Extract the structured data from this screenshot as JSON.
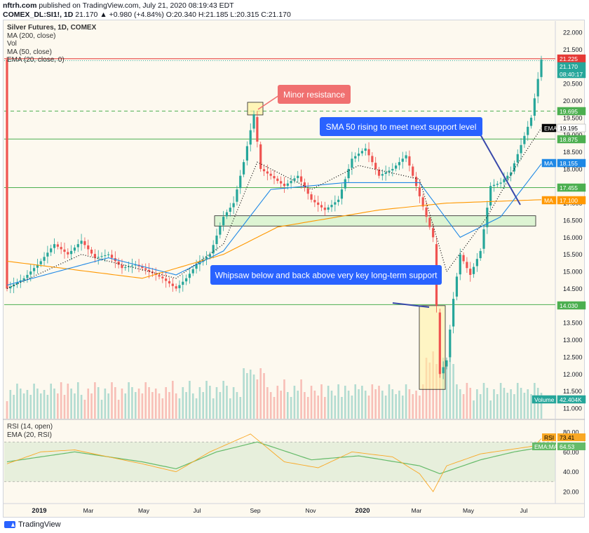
{
  "header": {
    "publisher": "nftrh.com",
    "published_text": "published on TradingView.com, July 21, 2020 08:19:43 EDT",
    "symbol": "COMEX_DL:SI1!, 1D",
    "ohlc": "21.170 ▲ +0.980 (+4.84%) O:20.340 H:21.185 L:20.315 C:21.170"
  },
  "legend": {
    "title": "Silver Futures, 1D, COMEX",
    "lines": [
      "MA (200, close)",
      "Vol",
      "MA (50, close)",
      "EMA (20, close, 0)"
    ]
  },
  "rsi_legend": {
    "line1": "RSI (14, open)",
    "line2": "EMA (20, RSI)"
  },
  "price_axis": {
    "ticks": [
      "22.000",
      "21.500",
      "21.000",
      "20.500",
      "20.000",
      "19.500",
      "19.000",
      "18.500",
      "18.000",
      "17.500",
      "17.000",
      "16.500",
      "16.000",
      "15.500",
      "15.000",
      "14.500",
      "14.000",
      "13.500",
      "13.000",
      "12.500",
      "12.000",
      "11.500",
      "11.000"
    ],
    "tick_values": [
      22.0,
      21.5,
      21.0,
      20.5,
      20.0,
      19.5,
      19.0,
      18.5,
      18.0,
      17.5,
      17.0,
      16.5,
      16.0,
      15.5,
      15.0,
      14.5,
      14.0,
      13.5,
      13.0,
      12.5,
      12.0,
      11.5,
      11.0
    ]
  },
  "rsi_axis": {
    "ticks": [
      "80.00",
      "60.00",
      "40.00",
      "20.00"
    ],
    "tick_values": [
      80,
      60,
      40,
      20
    ]
  },
  "time_axis": {
    "labels": [
      "2019",
      "Mar",
      "May",
      "Jul",
      "Sep",
      "Nov",
      "2020",
      "Mar",
      "May",
      "Jul"
    ]
  },
  "price_tags": [
    {
      "label": "21.225",
      "value": 21.225,
      "bg": "#e53935",
      "fg": "#ffffff"
    },
    {
      "label": "21.170",
      "value": 21.17,
      "bg": "#26a69a",
      "fg": "#ffffff"
    },
    {
      "label": "08:40:17",
      "value": 20.92,
      "bg": "#26a69a",
      "fg": "#ffffff"
    },
    {
      "label": "19.695",
      "value": 19.695,
      "bg": "#4caf50",
      "fg": "#ffffff"
    },
    {
      "label": "EMA",
      "value": 19.195,
      "bg": "#000000",
      "fg": "#ffffff"
    },
    {
      "label": "19.195",
      "value": 19.195,
      "bg": "#ffffff",
      "fg": "#000000"
    },
    {
      "label": "18.875",
      "value": 18.875,
      "bg": "#4caf50",
      "fg": "#ffffff"
    },
    {
      "label": "MA",
      "value": 18.155,
      "bg": "#1e88e5",
      "fg": "#ffffff"
    },
    {
      "label": "18.155",
      "value": 18.155,
      "bg": "#1e88e5",
      "fg": "#ffffff"
    },
    {
      "label": "17.455",
      "value": 17.455,
      "bg": "#4caf50",
      "fg": "#ffffff"
    },
    {
      "label": "MA",
      "value": 17.1,
      "bg": "#ff9800",
      "fg": "#ffffff"
    },
    {
      "label": "17.100",
      "value": 17.1,
      "bg": "#ff9800",
      "fg": "#ffffff"
    },
    {
      "label": "14.030",
      "value": 14.03,
      "bg": "#4caf50",
      "fg": "#ffffff"
    },
    {
      "label": "Volume",
      "value": 11.3,
      "bg": "#26a69a",
      "fg": "#ffffff"
    },
    {
      "label": "42.404K",
      "value": 11.3,
      "bg": "#26a69a",
      "fg": "#ffffff"
    }
  ],
  "rsi_tags": [
    {
      "label": "RSI",
      "value": 73.41,
      "bg": "#f9a825",
      "fg": "#000000"
    },
    {
      "label": "73.41",
      "value": 73.41,
      "bg": "#f9a825",
      "fg": "#000000"
    },
    {
      "label": "EMA:MA",
      "value": 64.53,
      "bg": "#66bb6a",
      "fg": "#ffffff"
    },
    {
      "label": "64.53",
      "value": 64.53,
      "bg": "#66bb6a",
      "fg": "#ffffff"
    }
  ],
  "annotations": {
    "minor_resistance": "Minor resistance",
    "sma50": "SMA 50 rising to meet next support level",
    "whipsaw": "Whipsaw below and back above very key long-term support"
  },
  "levels": [
    21.225,
    19.695,
    18.875,
    17.455,
    14.03
  ],
  "colors": {
    "up": "#26a69a",
    "down": "#ef5350",
    "ma200": "#ff9800",
    "ma50": "#1e88e5",
    "ema20": "#000000",
    "support": "#4caf50",
    "rsi": "#f9a825",
    "rsi_ema": "#66bb6a",
    "callout_blue": "#2962ff",
    "callout_red": "#f07070"
  },
  "footer": {
    "brand": "TradingView"
  },
  "chart_data": {
    "type": "candlestick",
    "title": "Silver Futures, 1D, COMEX",
    "x_labels": [
      "2019",
      "Mar",
      "May",
      "Jul",
      "Sep",
      "Nov",
      "2020",
      "Mar",
      "May",
      "Jul"
    ],
    "close_path": [
      [
        0,
        14.5
      ],
      [
        5,
        14.8
      ],
      [
        10,
        15.3
      ],
      [
        14,
        15.8
      ],
      [
        18,
        15.5
      ],
      [
        22,
        15.9
      ],
      [
        26,
        15.4
      ],
      [
        30,
        15.5
      ],
      [
        34,
        15.1
      ],
      [
        38,
        15.2
      ],
      [
        42,
        15.0
      ],
      [
        46,
        14.8
      ],
      [
        50,
        14.5
      ],
      [
        53,
        14.8
      ],
      [
        56,
        15.2
      ],
      [
        60,
        15.5
      ],
      [
        64,
        16.6
      ],
      [
        67,
        17.0
      ],
      [
        70,
        18.2
      ],
      [
        73,
        19.6
      ],
      [
        75,
        18.0
      ],
      [
        78,
        17.8
      ],
      [
        82,
        17.5
      ],
      [
        86,
        17.8
      ],
      [
        90,
        17.1
      ],
      [
        94,
        16.8
      ],
      [
        98,
        17.1
      ],
      [
        102,
        18.3
      ],
      [
        106,
        18.6
      ],
      [
        110,
        17.8
      ],
      [
        114,
        18.0
      ],
      [
        118,
        18.4
      ],
      [
        122,
        17.2
      ],
      [
        124,
        16.6
      ],
      [
        126,
        16.0
      ],
      [
        128,
        12.0
      ],
      [
        130,
        12.4
      ],
      [
        132,
        14.2
      ],
      [
        134,
        15.5
      ],
      [
        137,
        14.9
      ],
      [
        140,
        15.6
      ],
      [
        143,
        17.5
      ],
      [
        146,
        17.6
      ],
      [
        149,
        17.9
      ],
      [
        152,
        18.7
      ],
      [
        155,
        19.5
      ],
      [
        158,
        21.2
      ]
    ],
    "ma200": [
      [
        0,
        15.3
      ],
      [
        40,
        14.8
      ],
      [
        64,
        15.5
      ],
      [
        80,
        16.3
      ],
      [
        110,
        16.8
      ],
      [
        130,
        17.0
      ],
      [
        158,
        17.1
      ]
    ],
    "ma50": [
      [
        0,
        14.6
      ],
      [
        30,
        15.4
      ],
      [
        50,
        14.9
      ],
      [
        64,
        15.6
      ],
      [
        78,
        17.4
      ],
      [
        100,
        17.6
      ],
      [
        122,
        17.6
      ],
      [
        134,
        16.0
      ],
      [
        146,
        16.6
      ],
      [
        158,
        18.15
      ]
    ],
    "ema20": [
      [
        0,
        14.5
      ],
      [
        22,
        15.5
      ],
      [
        50,
        14.8
      ],
      [
        64,
        15.8
      ],
      [
        74,
        18.2
      ],
      [
        90,
        17.4
      ],
      [
        104,
        18.1
      ],
      [
        122,
        17.7
      ],
      [
        130,
        15.0
      ],
      [
        142,
        16.6
      ],
      [
        150,
        18.0
      ],
      [
        158,
        19.2
      ]
    ],
    "rsi": [
      [
        0,
        48
      ],
      [
        10,
        60
      ],
      [
        20,
        62
      ],
      [
        30,
        55
      ],
      [
        40,
        48
      ],
      [
        50,
        40
      ],
      [
        60,
        60
      ],
      [
        72,
        78
      ],
      [
        82,
        50
      ],
      [
        92,
        44
      ],
      [
        102,
        60
      ],
      [
        114,
        55
      ],
      [
        122,
        38
      ],
      [
        126,
        20
      ],
      [
        130,
        46
      ],
      [
        140,
        58
      ],
      [
        148,
        62
      ],
      [
        156,
        66
      ],
      [
        158,
        73.4
      ]
    ],
    "rsi_ema": [
      [
        0,
        50
      ],
      [
        20,
        60
      ],
      [
        40,
        50
      ],
      [
        50,
        43
      ],
      [
        62,
        60
      ],
      [
        74,
        70
      ],
      [
        90,
        52
      ],
      [
        104,
        56
      ],
      [
        122,
        46
      ],
      [
        128,
        38
      ],
      [
        140,
        52
      ],
      [
        150,
        60
      ],
      [
        158,
        64.5
      ]
    ]
  }
}
